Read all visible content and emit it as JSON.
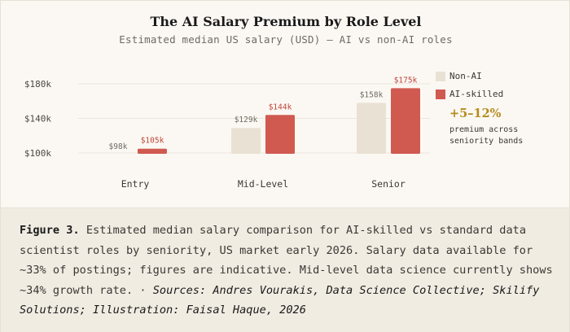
{
  "chart_data": {
    "type": "bar",
    "title": "The AI Salary Premium by Role Level",
    "subtitle": "Estimated median US salary (USD) — AI vs non-AI roles",
    "categories": [
      "Entry",
      "Mid-Level",
      "Senior"
    ],
    "series": [
      {
        "name": "Non-AI",
        "values": [
          98,
          129,
          158
        ],
        "labels": [
          "$98k",
          "$129k",
          "$158k"
        ],
        "color": "#e9e1d3"
      },
      {
        "name": "AI-skilled",
        "values": [
          105,
          144,
          175
        ],
        "labels": [
          "$105k",
          "$144k",
          "$175k"
        ],
        "color": "#d05a50"
      }
    ],
    "yticks": [
      100,
      140,
      180
    ],
    "ytick_labels": [
      "$100k",
      "$140k",
      "$180k"
    ],
    "ylim": [
      100,
      180
    ],
    "grid": true,
    "legend_position": "right",
    "annotation": {
      "value": "+5–12%",
      "text": "premium across seniority bands"
    }
  },
  "caption": {
    "label": "Figure 3.",
    "text": "Estimated median salary comparison for AI-skilled vs standard data scientist roles by seniority, US market early 2026. Salary data available for ~33% of postings; figures are indicative. Mid-level data science currently shows ~34% growth rate.",
    "separator": " · ",
    "sources": "Sources: Andres Vourakis, Data Science Collective; Skilify Solutions; Illustration: Faisal Haque, 2026"
  },
  "colors": {
    "non_ai": "#e9e1d3",
    "ai": "#d05a50",
    "accent": "#b58b1f",
    "grid": "#ebe6dc"
  }
}
